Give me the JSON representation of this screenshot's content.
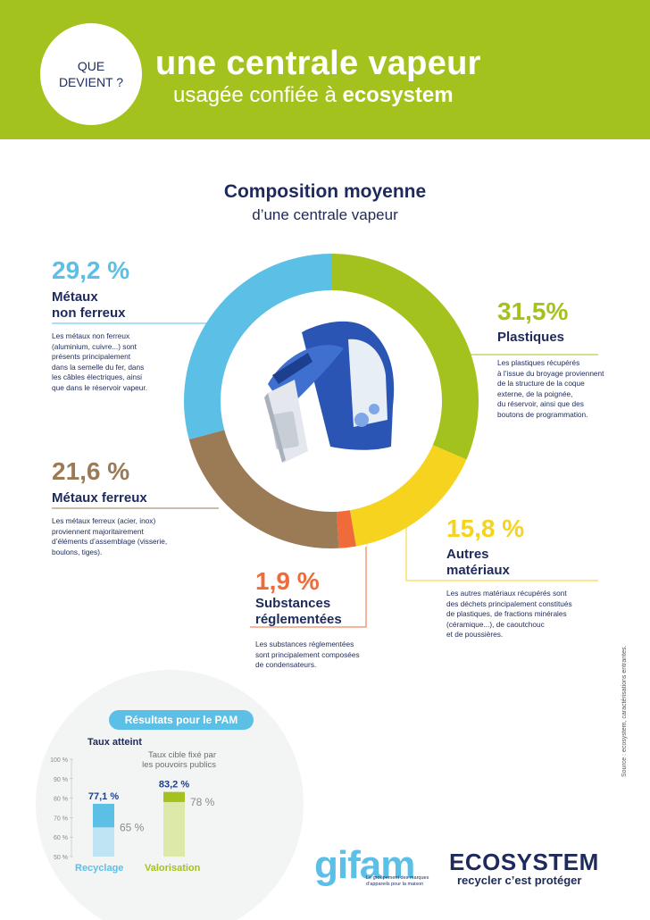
{
  "header": {
    "question": "QUE DEVIENT ?",
    "title_line1": "une centrale vapeur",
    "title_line2_prefix": "usagée confiée à ",
    "title_line2_brand": "ecosystem"
  },
  "composition": {
    "title": "Composition moyenne",
    "subtitle": "d’une centrale vapeur"
  },
  "chart_data": {
    "type": "pie",
    "categories": [
      "Plastiques",
      "Autres matériaux",
      "Substances réglementées",
      "Métaux ferreux",
      "Métaux non ferreux"
    ],
    "values": [
      31.5,
      15.8,
      1.9,
      21.6,
      29.2
    ],
    "colors": [
      "#a4c21d",
      "#f5d31e",
      "#ef6b3a",
      "#9a7b56",
      "#5bbfe6"
    ]
  },
  "segments": [
    {
      "pct": "29,2 %",
      "name_line1": "Métaux",
      "name_line2": "non ferreux",
      "color": "#5bbfe6",
      "desc": [
        "Les métaux non ferreux",
        "(aluminium, cuivre...) sont",
        "présents principalement",
        "dans la semelle du fer, dans",
        "les câbles électriques, ainsi",
        "que dans le réservoir vapeur."
      ]
    },
    {
      "pct": "31,5%",
      "name_line1": "Plastiques",
      "name_line2": "",
      "color": "#a4c21d",
      "desc": [
        "Les plastiques récupérés",
        "à l’issue du broyage proviennent",
        "de la structure de la coque",
        "externe, de la poignée,",
        "du réservoir, ainsi que des",
        "boutons de programmation."
      ]
    },
    {
      "pct": "21,6 %",
      "name_line1": "Métaux ferreux",
      "name_line2": "",
      "color": "#9a7b56",
      "desc": [
        "Les métaux ferreux (acier, inox)",
        "proviennent majoritairement",
        "d’éléments d’assemblage (visserie,",
        "boulons, tiges)."
      ]
    },
    {
      "pct": "15,8 %",
      "name_line1": "Autres",
      "name_line2": "matériaux",
      "color": "#f5d31e",
      "desc": [
        "Les autres matériaux récupérés sont",
        "des déchets principalement constitués",
        "de plastiques, de fractions minérales",
        "(céramique...), de caoutchouc",
        "et de poussières."
      ]
    },
    {
      "pct": "1,9 %",
      "name_line1": "Substances",
      "name_line2": "réglementées",
      "color": "#ef6b3a",
      "desc": [
        "Les substances réglementées",
        "sont principalement composées",
        "de condensateurs."
      ]
    }
  ],
  "results": {
    "pill": "Résultats pour le PAM",
    "taux_atteint": "Taux atteint",
    "cible_line1": "Taux cible fixé par",
    "cible_line2": "les pouvoirs publics",
    "yticks": [
      "100 %",
      "90 %",
      "80 %",
      "70 %",
      "60 %",
      "50 %"
    ],
    "bars": [
      {
        "label": "Recyclage",
        "achieved": 77.1,
        "achieved_label": "77,1 %",
        "target": 65,
        "target_label": "65 %",
        "color": "#5bbfe6",
        "light": "#bfe4f4"
      },
      {
        "label": "Valorisation",
        "achieved": 83.2,
        "achieved_label": "83,2 %",
        "target": 78,
        "target_label": "78 %",
        "color": "#a4c21d",
        "light": "#dde9a8"
      }
    ]
  },
  "logos": {
    "gifam": "gifam",
    "gifam_tagline": "Le groupement des marques d’appareils pour la maison",
    "ecosystem": "ECOSYSTEM",
    "ecosystem_tagline": "recycler c’est protéger"
  },
  "source": "Source : ecosystem, caractérisations entrantes."
}
